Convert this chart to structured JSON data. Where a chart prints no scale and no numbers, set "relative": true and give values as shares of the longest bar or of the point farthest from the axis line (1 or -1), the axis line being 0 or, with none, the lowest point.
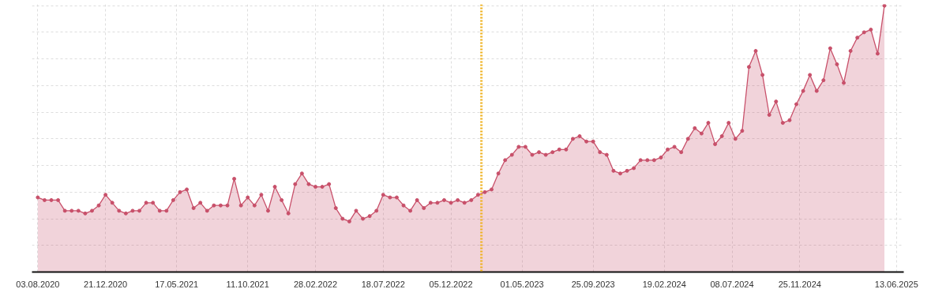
{
  "chart_data": {
    "type": "area",
    "relative": true,
    "marker": "circle",
    "line_style": "solid",
    "grid": true,
    "x": [
      "2020-08-03",
      "2020-08-17",
      "2020-08-31",
      "2020-09-14",
      "2020-09-28",
      "2020-10-12",
      "2020-10-26",
      "2020-11-09",
      "2020-11-23",
      "2020-12-07",
      "2020-12-21",
      "2021-01-04",
      "2021-01-18",
      "2021-02-01",
      "2021-02-15",
      "2021-03-01",
      "2021-03-15",
      "2021-03-29",
      "2021-04-12",
      "2021-04-26",
      "2021-05-10",
      "2021-05-24",
      "2021-06-07",
      "2021-06-21",
      "2021-07-05",
      "2021-07-19",
      "2021-08-02",
      "2021-08-16",
      "2021-08-30",
      "2021-09-13",
      "2021-09-27",
      "2021-10-11",
      "2021-10-25",
      "2021-11-08",
      "2021-11-22",
      "2021-12-06",
      "2021-12-20",
      "2022-01-03",
      "2022-01-17",
      "2022-01-31",
      "2022-02-14",
      "2022-02-28",
      "2022-03-14",
      "2022-03-28",
      "2022-04-11",
      "2022-04-25",
      "2022-05-09",
      "2022-05-23",
      "2022-06-06",
      "2022-06-20",
      "2022-07-04",
      "2022-07-18",
      "2022-08-01",
      "2022-08-15",
      "2022-08-29",
      "2022-09-12",
      "2022-09-26",
      "2022-10-10",
      "2022-10-24",
      "2022-11-07",
      "2022-11-21",
      "2022-12-05",
      "2022-12-19",
      "2023-01-02",
      "2023-01-16",
      "2023-01-30",
      "2023-02-13",
      "2023-02-27",
      "2023-03-13",
      "2023-03-27",
      "2023-04-10",
      "2023-04-24",
      "2023-05-08",
      "2023-05-22",
      "2023-06-05",
      "2023-06-19",
      "2023-07-03",
      "2023-07-17",
      "2023-07-31",
      "2023-08-14",
      "2023-08-28",
      "2023-09-11",
      "2023-09-25",
      "2023-10-09",
      "2023-10-23",
      "2023-11-06",
      "2023-11-20",
      "2023-12-04",
      "2023-12-18",
      "2024-01-01",
      "2024-01-15",
      "2024-01-29",
      "2024-02-12",
      "2024-02-26",
      "2024-03-11",
      "2024-03-25",
      "2024-04-08",
      "2024-04-22",
      "2024-05-06",
      "2024-05-20",
      "2024-06-03",
      "2024-06-17",
      "2024-07-01",
      "2024-07-15",
      "2024-07-29",
      "2024-08-12",
      "2024-08-26",
      "2024-09-09",
      "2024-09-23",
      "2024-10-07",
      "2024-10-21",
      "2024-11-04",
      "2024-11-18",
      "2024-12-02",
      "2024-12-16",
      "2024-12-30",
      "2025-01-13",
      "2025-01-27",
      "2025-02-10",
      "2025-02-24",
      "2025-03-10",
      "2025-03-24",
      "2025-04-07",
      "2025-04-21",
      "2025-05-05",
      "2025-05-19"
    ],
    "series": [
      {
        "color": "#c8506a",
        "values": [
          0.28,
          0.27,
          0.27,
          0.27,
          0.23,
          0.23,
          0.23,
          0.22,
          0.23,
          0.25,
          0.29,
          0.26,
          0.23,
          0.22,
          0.23,
          0.23,
          0.26,
          0.26,
          0.23,
          0.23,
          0.27,
          0.3,
          0.31,
          0.24,
          0.26,
          0.23,
          0.25,
          0.25,
          0.25,
          0.35,
          0.25,
          0.28,
          0.25,
          0.29,
          0.23,
          0.32,
          0.27,
          0.22,
          0.33,
          0.37,
          0.33,
          0.32,
          0.32,
          0.33,
          0.24,
          0.2,
          0.19,
          0.23,
          0.2,
          0.21,
          0.23,
          0.29,
          0.28,
          0.28,
          0.25,
          0.23,
          0.27,
          0.24,
          0.26,
          0.26,
          0.27,
          0.26,
          0.27,
          0.26,
          0.27,
          0.29,
          0.3,
          0.31,
          0.37,
          0.42,
          0.44,
          0.47,
          0.47,
          0.44,
          0.45,
          0.44,
          0.45,
          0.46,
          0.46,
          0.5,
          0.51,
          0.49,
          0.49,
          0.45,
          0.44,
          0.38,
          0.37,
          0.38,
          0.39,
          0.42,
          0.42,
          0.42,
          0.43,
          0.46,
          0.47,
          0.45,
          0.5,
          0.54,
          0.52,
          0.56,
          0.48,
          0.51,
          0.56,
          0.5,
          0.53,
          0.77,
          0.83,
          0.74,
          0.59,
          0.64,
          0.56,
          0.57,
          0.63,
          0.68,
          0.74,
          0.68,
          0.72,
          0.84,
          0.78,
          0.71,
          0.83,
          0.88,
          0.9,
          0.91,
          0.82,
          1.0
        ]
      }
    ],
    "xlim": [
      "2020-07-22",
      "2025-06-28"
    ],
    "xticks": [
      {
        "value": "2020-08-03",
        "label": "03.08.2020"
      },
      {
        "value": "2020-12-21",
        "label": "21.12.2020"
      },
      {
        "value": "2021-05-17",
        "label": "17.05.2021"
      },
      {
        "value": "2021-10-11",
        "label": "11.10.2021"
      },
      {
        "value": "2022-02-28",
        "label": "28.02.2022"
      },
      {
        "value": "2022-07-18",
        "label": "18.07.2022"
      },
      {
        "value": "2022-12-05",
        "label": "05.12.2022"
      },
      {
        "value": "2023-05-01",
        "label": "01.05.2023"
      },
      {
        "value": "2023-09-25",
        "label": "25.09.2023"
      },
      {
        "value": "2024-02-19",
        "label": "19.02.2024"
      },
      {
        "value": "2024-07-08",
        "label": "08.07.2024"
      },
      {
        "value": "2024-11-25",
        "label": "25.11.2024"
      },
      {
        "value": "2025-06-13",
        "label": "13.06.2025"
      }
    ],
    "ref_lines": [
      {
        "axis": "x",
        "value": "2023-02-06",
        "color": "#f0b323",
        "line_style": "dotted"
      }
    ]
  }
}
